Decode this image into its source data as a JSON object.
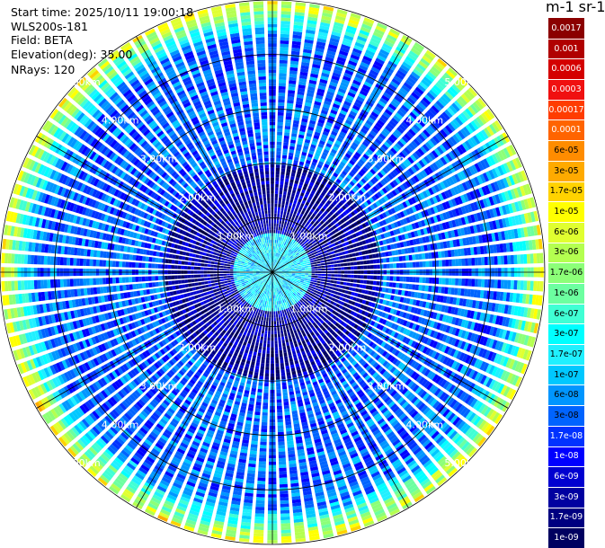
{
  "header": {
    "start_time": "Start time: 2025/10/11 19:00:18",
    "instrument": "WLS200s-181",
    "field": "Field: BETA",
    "elevation": "Elevation(deg): 35.00",
    "nrays": "NRays: 120"
  },
  "colorbar": {
    "unit_label": "m-1 sr-1",
    "labels": [
      "0.0017",
      "0.001",
      "0.0006",
      "0.0003",
      "0.00017",
      "0.0001",
      "6e-05",
      "3e-05",
      "1.7e-05",
      "1e-05",
      "6e-06",
      "3e-06",
      "1.7e-06",
      "1e-06",
      "6e-07",
      "3e-07",
      "1.7e-07",
      "1e-07",
      "6e-08",
      "3e-08",
      "1.7e-08",
      "1e-08",
      "6e-09",
      "3e-09",
      "1.7e-09",
      "1e-09"
    ],
    "colors": [
      "#8b0000",
      "#b00000",
      "#d40000",
      "#f01010",
      "#ff3c00",
      "#ff6400",
      "#ff8c00",
      "#ffaa00",
      "#ffd200",
      "#ffff00",
      "#e0ff30",
      "#b4ff50",
      "#8cff78",
      "#6cffa0",
      "#40ffd4",
      "#00ffff",
      "#20f0ff",
      "#00c8ff",
      "#0096ff",
      "#0064ff",
      "#0032ff",
      "#0000ff",
      "#0000d0",
      "#0000a0",
      "#000080",
      "#000060"
    ]
  },
  "chart_data": {
    "type": "heatmap",
    "projection": "polar PPI",
    "field": "BETA",
    "nrays": 120,
    "max_range_km": 5,
    "range_rings_km": [
      1,
      2,
      3,
      4,
      5
    ],
    "ring_labels": [
      "1.00km",
      "2.00km",
      "3.00km",
      "4.00km",
      "5.00km"
    ],
    "spokes_deg": [
      0,
      30,
      60,
      90,
      120,
      150,
      180,
      210,
      240,
      270,
      300,
      330
    ],
    "color_scale": "log",
    "value_range": [
      1e-09,
      0.0017
    ],
    "inner_zone_km": 0.75,
    "inner_zone_typical": 1.7e-07,
    "mid_zone_km": [
      0.75,
      2.0
    ],
    "mid_zone_typical": 3e-09,
    "outer_zone_typical": 3e-08,
    "edge_zone_km": [
      4.3,
      5.0
    ],
    "edge_zone_typical": 1e-05
  }
}
